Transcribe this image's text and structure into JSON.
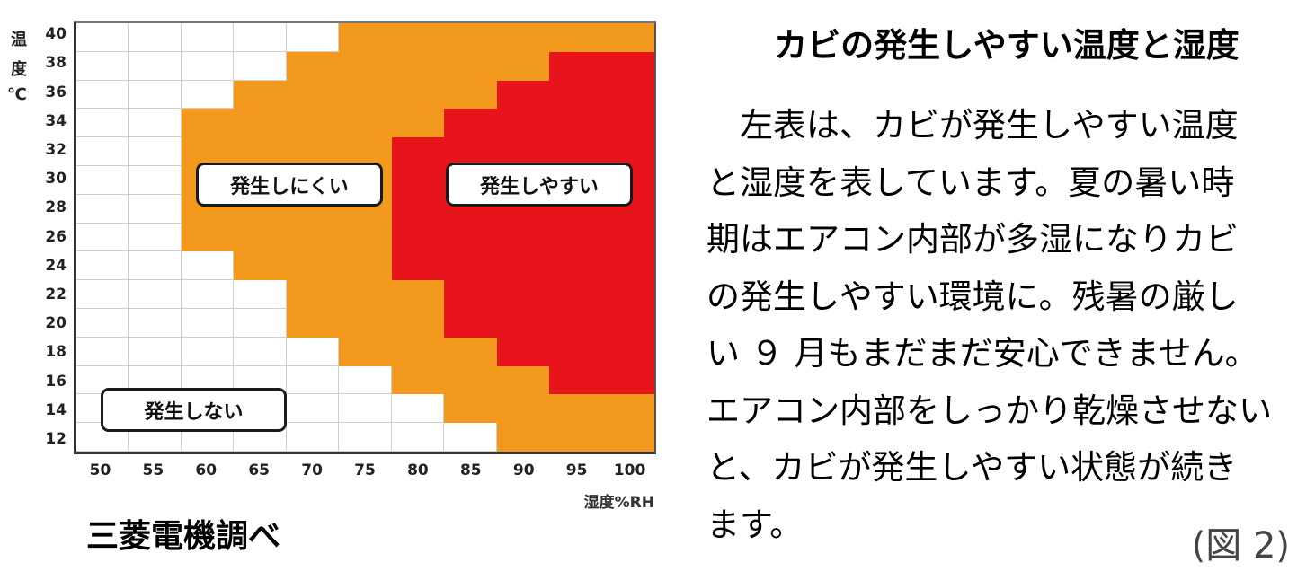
{
  "chart_data": {
    "type": "heatmap",
    "title": "カビの発生しやすい温度と湿度",
    "xlabel": "湿度%RH",
    "ylabel": "温度℃",
    "x": [
      50,
      55,
      60,
      65,
      70,
      75,
      80,
      85,
      90,
      95,
      100
    ],
    "y": [
      40,
      38,
      36,
      34,
      32,
      30,
      28,
      26,
      24,
      22,
      20,
      18,
      16,
      14,
      12
    ],
    "legend": {
      "W": "発生しない",
      "O": "発生しにくい",
      "R": "発生しやすい"
    },
    "colors": {
      "W": "#FFFFFF",
      "O": "#F39A1E",
      "R": "#E8141B"
    },
    "grid": [
      [
        "W",
        "W",
        "W",
        "W",
        "W",
        "O",
        "O",
        "O",
        "O",
        "O",
        "O"
      ],
      [
        "W",
        "W",
        "W",
        "W",
        "O",
        "O",
        "O",
        "O",
        "O",
        "R",
        "R"
      ],
      [
        "W",
        "W",
        "W",
        "O",
        "O",
        "O",
        "O",
        "O",
        "R",
        "R",
        "R"
      ],
      [
        "W",
        "W",
        "O",
        "O",
        "O",
        "O",
        "O",
        "R",
        "R",
        "R",
        "R"
      ],
      [
        "W",
        "W",
        "O",
        "O",
        "O",
        "O",
        "R",
        "R",
        "R",
        "R",
        "R"
      ],
      [
        "W",
        "W",
        "O",
        "O",
        "O",
        "O",
        "R",
        "R",
        "R",
        "R",
        "R"
      ],
      [
        "W",
        "W",
        "O",
        "O",
        "O",
        "O",
        "R",
        "R",
        "R",
        "R",
        "R"
      ],
      [
        "W",
        "W",
        "O",
        "O",
        "O",
        "O",
        "R",
        "R",
        "R",
        "R",
        "R"
      ],
      [
        "W",
        "W",
        "W",
        "O",
        "O",
        "O",
        "R",
        "R",
        "R",
        "R",
        "R"
      ],
      [
        "W",
        "W",
        "W",
        "W",
        "O",
        "O",
        "O",
        "R",
        "R",
        "R",
        "R"
      ],
      [
        "W",
        "W",
        "W",
        "W",
        "O",
        "O",
        "O",
        "R",
        "R",
        "R",
        "R"
      ],
      [
        "W",
        "W",
        "W",
        "W",
        "W",
        "O",
        "O",
        "O",
        "R",
        "R",
        "R"
      ],
      [
        "W",
        "W",
        "W",
        "W",
        "W",
        "W",
        "O",
        "O",
        "O",
        "R",
        "R"
      ],
      [
        "W",
        "W",
        "W",
        "W",
        "W",
        "W",
        "W",
        "O",
        "O",
        "O",
        "O"
      ],
      [
        "W",
        "W",
        "W",
        "W",
        "W",
        "W",
        "W",
        "W",
        "O",
        "O",
        "O"
      ]
    ],
    "annotations": [
      "発生しにくい",
      "発生しやすい",
      "発生しない"
    ],
    "source": "三菱電機調べ"
  },
  "chart": {
    "ylabel_chars": [
      "温",
      "度",
      "℃"
    ],
    "yticks": [
      "40",
      "38",
      "36",
      "34",
      "32",
      "30",
      "28",
      "26",
      "24",
      "22",
      "20",
      "18",
      "16",
      "14",
      "12"
    ],
    "xticks": [
      "50",
      "55",
      "60",
      "65",
      "70",
      "75",
      "80",
      "85",
      "90",
      "95",
      "100"
    ],
    "xlabel": "湿度%RH",
    "labels": {
      "unlikely": "発生しにくい",
      "likely": "発生しやすい",
      "none": "発生しない"
    },
    "source": "三菱電機調べ"
  },
  "article": {
    "heading": "カビの発生しやすい温度と湿度",
    "lines": [
      "　左表は、カビが発生しやすい温度",
      "と湿度を表しています。夏の暑い時",
      "期はエアコン内部が多湿になりカビ",
      "の発生しやすい環境に。残暑の厳し",
      "い ９ 月もまだまだ安心できません。",
      "エアコン内部をしっかり乾燥させない",
      "と、カビが発生しやすい状態が続き",
      "ます。"
    ],
    "figure_ref": "(図 2)"
  }
}
